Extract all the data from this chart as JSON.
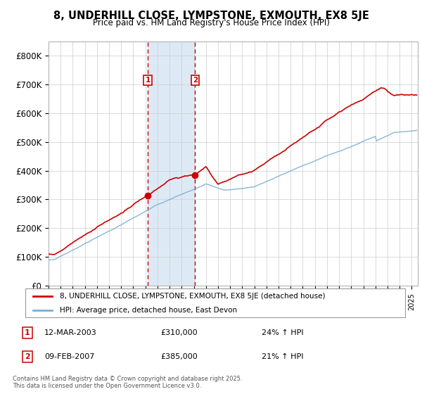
{
  "title": "8, UNDERHILL CLOSE, LYMPSTONE, EXMOUTH, EX8 5JE",
  "subtitle": "Price paid vs. HM Land Registry's House Price Index (HPI)",
  "ylabel_ticks": [
    "£0",
    "£100K",
    "£200K",
    "£300K",
    "£400K",
    "£500K",
    "£600K",
    "£700K",
    "£800K"
  ],
  "ylim": [
    0,
    850000
  ],
  "xlim_start": 1995.0,
  "xlim_end": 2025.5,
  "sale1_date": 2003.19,
  "sale1_label": "1",
  "sale1_price": 310000,
  "sale2_date": 2007.11,
  "sale2_label": "2",
  "sale2_price": 385000,
  "red_line_color": "#cc0000",
  "blue_line_color": "#7bafd4",
  "shade_color": "#ddeaf5",
  "grid_color": "#cccccc",
  "legend1": "8, UNDERHILL CLOSE, LYMPSTONE, EXMOUTH, EX8 5JE (detached house)",
  "legend2": "HPI: Average price, detached house, East Devon",
  "footnote": "Contains HM Land Registry data © Crown copyright and database right 2025.\nThis data is licensed under the Open Government Licence v3.0.",
  "background_color": "#ffffff"
}
